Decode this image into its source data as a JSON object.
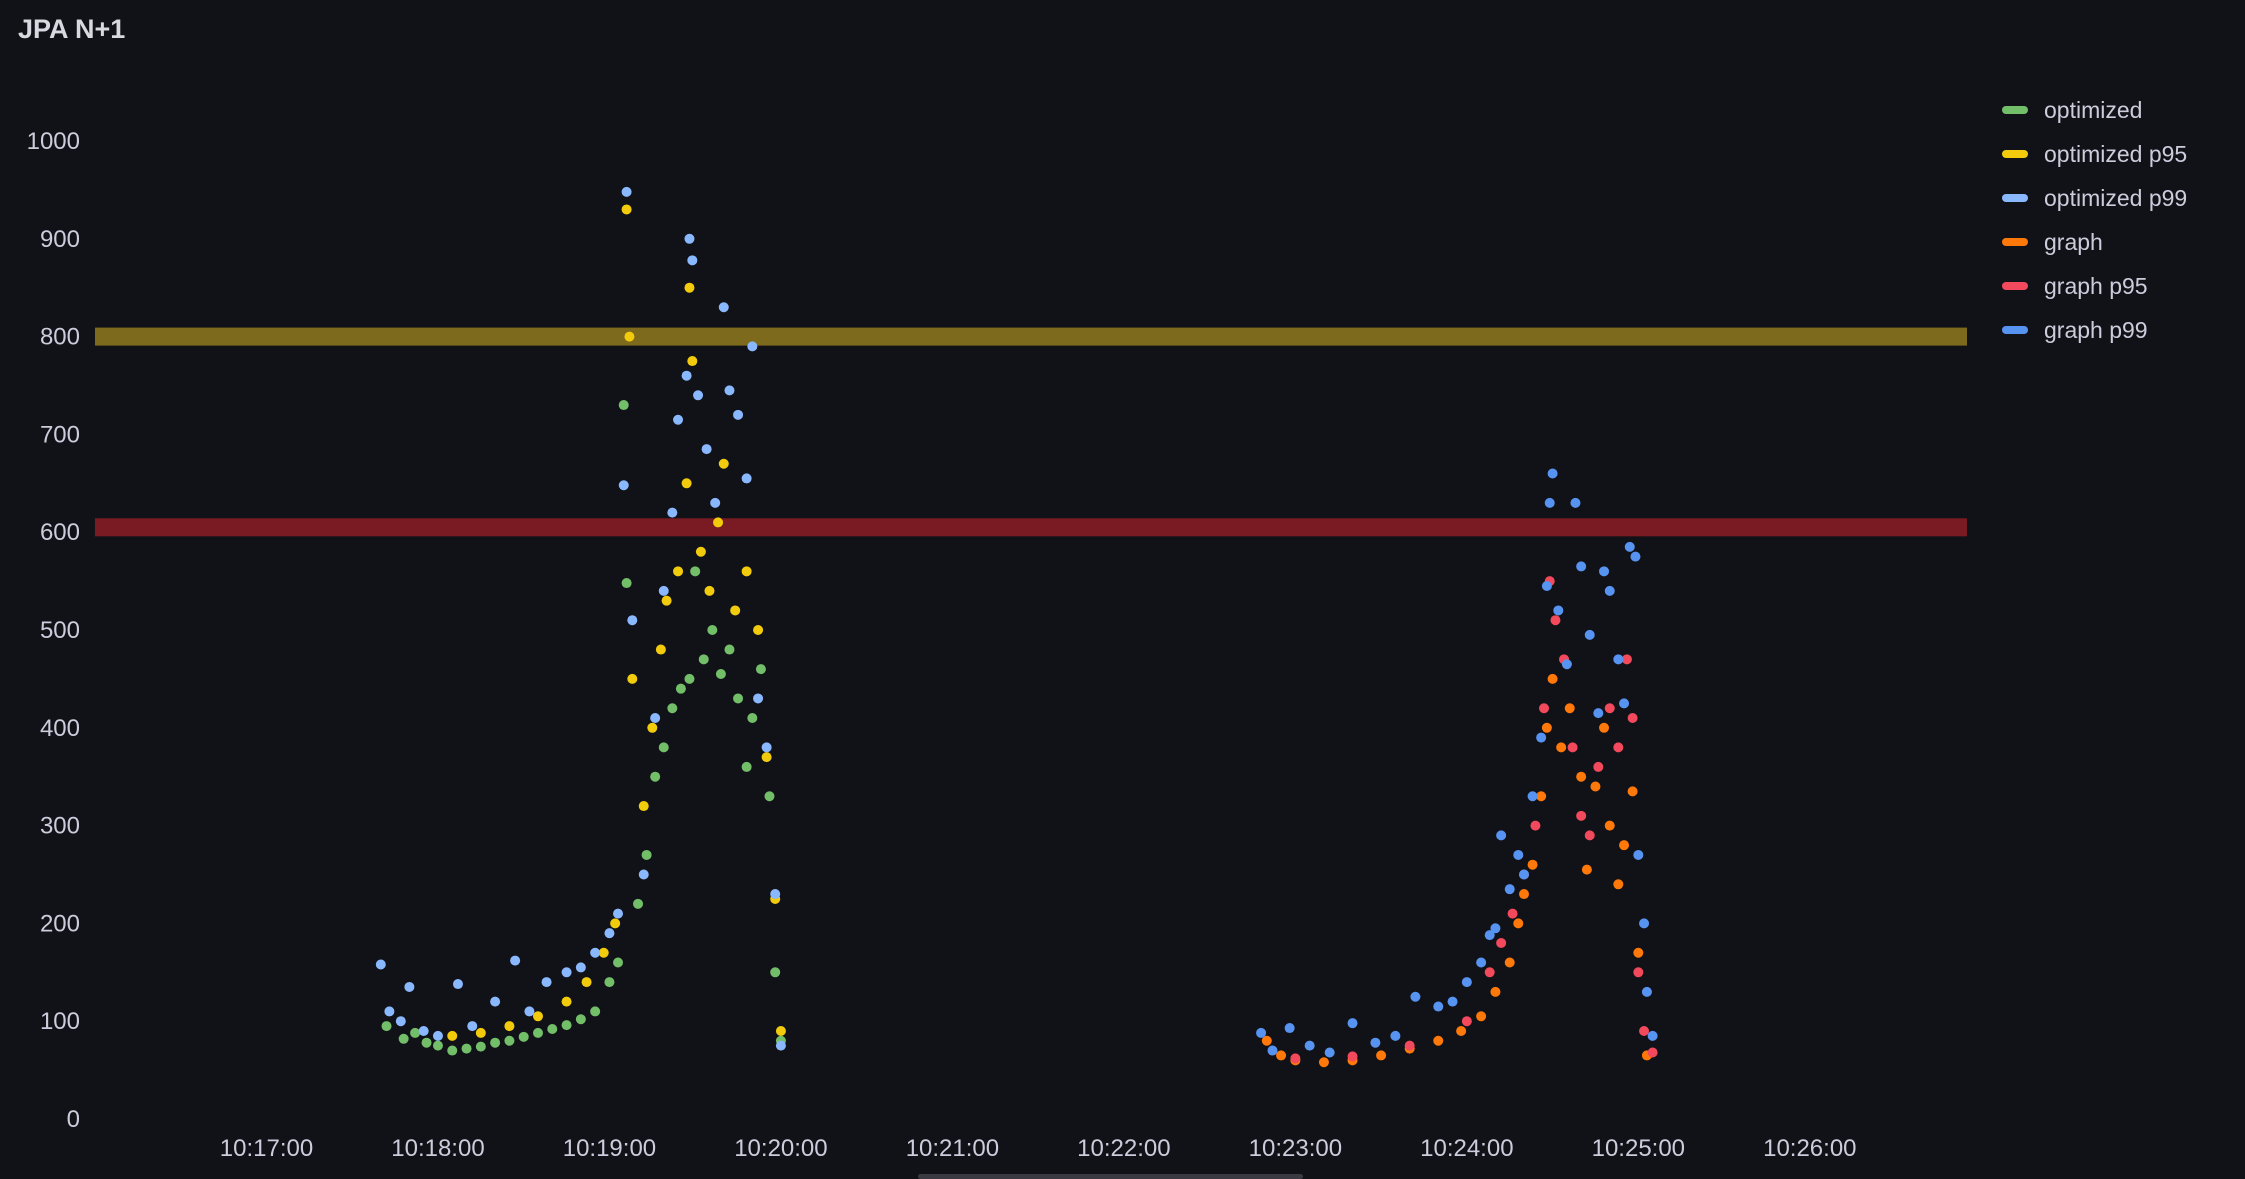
{
  "panel": {
    "title": "JPA N+1"
  },
  "chart_data": {
    "type": "scatter",
    "title": "JPA N+1",
    "xlabel": "",
    "ylabel": "",
    "ylim": [
      0,
      1000
    ],
    "yticks": [
      0,
      100,
      200,
      300,
      400,
      500,
      600,
      700,
      800,
      900,
      1000
    ],
    "xlim": [
      "10:16:00",
      "10:26:55"
    ],
    "xticks": [
      "10:17:00",
      "10:18:00",
      "10:19:00",
      "10:20:00",
      "10:21:00",
      "10:22:00",
      "10:23:00",
      "10:24:00",
      "10:25:00",
      "10:26:00"
    ],
    "legend_position": "right",
    "grid": false,
    "thresholds": [
      {
        "value": 800,
        "color": "#7d6a1c"
      },
      {
        "value": 605,
        "color": "#7a1a22"
      }
    ],
    "series": [
      {
        "name": "optimized",
        "color": "#73bf69",
        "points": [
          [
            "10:17:42",
            95
          ],
          [
            "10:17:48",
            82
          ],
          [
            "10:17:52",
            88
          ],
          [
            "10:17:56",
            78
          ],
          [
            "10:18:00",
            75
          ],
          [
            "10:18:05",
            70
          ],
          [
            "10:18:10",
            72
          ],
          [
            "10:18:15",
            74
          ],
          [
            "10:18:20",
            78
          ],
          [
            "10:18:25",
            80
          ],
          [
            "10:18:30",
            84
          ],
          [
            "10:18:35",
            88
          ],
          [
            "10:18:40",
            92
          ],
          [
            "10:18:45",
            96
          ],
          [
            "10:18:50",
            102
          ],
          [
            "10:18:55",
            110
          ],
          [
            "10:19:00",
            140
          ],
          [
            "10:19:03",
            160
          ],
          [
            "10:19:05",
            730
          ],
          [
            "10:19:06",
            548
          ],
          [
            "10:19:10",
            220
          ],
          [
            "10:19:13",
            270
          ],
          [
            "10:19:16",
            350
          ],
          [
            "10:19:19",
            380
          ],
          [
            "10:19:22",
            420
          ],
          [
            "10:19:25",
            440
          ],
          [
            "10:19:28",
            450
          ],
          [
            "10:19:30",
            560
          ],
          [
            "10:19:33",
            470
          ],
          [
            "10:19:36",
            500
          ],
          [
            "10:19:39",
            455
          ],
          [
            "10:19:42",
            480
          ],
          [
            "10:19:45",
            430
          ],
          [
            "10:19:48",
            360
          ],
          [
            "10:19:50",
            410
          ],
          [
            "10:19:53",
            460
          ],
          [
            "10:19:56",
            330
          ],
          [
            "10:19:58",
            150
          ],
          [
            "10:20:00",
            80
          ]
        ]
      },
      {
        "name": "optimized p95",
        "color": "#f2cc0c",
        "points": [
          [
            "10:18:05",
            85
          ],
          [
            "10:18:15",
            88
          ],
          [
            "10:18:25",
            95
          ],
          [
            "10:18:35",
            105
          ],
          [
            "10:18:45",
            120
          ],
          [
            "10:18:52",
            140
          ],
          [
            "10:18:58",
            170
          ],
          [
            "10:19:02",
            200
          ],
          [
            "10:19:06",
            930
          ],
          [
            "10:19:07",
            800
          ],
          [
            "10:19:08",
            450
          ],
          [
            "10:19:12",
            320
          ],
          [
            "10:19:15",
            400
          ],
          [
            "10:19:18",
            480
          ],
          [
            "10:19:20",
            530
          ],
          [
            "10:19:24",
            560
          ],
          [
            "10:19:27",
            650
          ],
          [
            "10:19:28",
            850
          ],
          [
            "10:19:29",
            775
          ],
          [
            "10:19:32",
            580
          ],
          [
            "10:19:35",
            540
          ],
          [
            "10:19:38",
            610
          ],
          [
            "10:19:40",
            670
          ],
          [
            "10:19:44",
            520
          ],
          [
            "10:19:48",
            560
          ],
          [
            "10:19:52",
            500
          ],
          [
            "10:19:55",
            370
          ],
          [
            "10:19:58",
            225
          ],
          [
            "10:20:00",
            90
          ]
        ]
      },
      {
        "name": "optimized p99",
        "color": "#8ab8ff",
        "points": [
          [
            "10:17:40",
            158
          ],
          [
            "10:17:43",
            110
          ],
          [
            "10:17:47",
            100
          ],
          [
            "10:17:50",
            135
          ],
          [
            "10:17:55",
            90
          ],
          [
            "10:18:00",
            85
          ],
          [
            "10:18:07",
            138
          ],
          [
            "10:18:12",
            95
          ],
          [
            "10:18:20",
            120
          ],
          [
            "10:18:27",
            162
          ],
          [
            "10:18:32",
            110
          ],
          [
            "10:18:38",
            140
          ],
          [
            "10:18:45",
            150
          ],
          [
            "10:18:50",
            155
          ],
          [
            "10:18:55",
            170
          ],
          [
            "10:19:00",
            190
          ],
          [
            "10:19:03",
            210
          ],
          [
            "10:19:05",
            648
          ],
          [
            "10:19:06",
            948
          ],
          [
            "10:19:08",
            510
          ],
          [
            "10:19:12",
            250
          ],
          [
            "10:19:16",
            410
          ],
          [
            "10:19:19",
            540
          ],
          [
            "10:19:22",
            620
          ],
          [
            "10:19:24",
            715
          ],
          [
            "10:19:27",
            760
          ],
          [
            "10:19:28",
            900
          ],
          [
            "10:19:29",
            878
          ],
          [
            "10:19:31",
            740
          ],
          [
            "10:19:34",
            685
          ],
          [
            "10:19:37",
            630
          ],
          [
            "10:19:40",
            830
          ],
          [
            "10:19:42",
            745
          ],
          [
            "10:19:45",
            720
          ],
          [
            "10:19:48",
            655
          ],
          [
            "10:19:50",
            790
          ],
          [
            "10:19:52",
            430
          ],
          [
            "10:19:55",
            380
          ],
          [
            "10:19:58",
            230
          ],
          [
            "10:20:00",
            75
          ]
        ]
      },
      {
        "name": "graph",
        "color": "#ff780a",
        "points": [
          [
            "10:22:50",
            80
          ],
          [
            "10:22:55",
            65
          ],
          [
            "10:23:00",
            60
          ],
          [
            "10:23:10",
            58
          ],
          [
            "10:23:20",
            60
          ],
          [
            "10:23:30",
            65
          ],
          [
            "10:23:40",
            72
          ],
          [
            "10:23:50",
            80
          ],
          [
            "10:23:58",
            90
          ],
          [
            "10:24:05",
            105
          ],
          [
            "10:24:10",
            130
          ],
          [
            "10:24:15",
            160
          ],
          [
            "10:24:18",
            200
          ],
          [
            "10:24:20",
            230
          ],
          [
            "10:24:23",
            260
          ],
          [
            "10:24:26",
            330
          ],
          [
            "10:24:28",
            400
          ],
          [
            "10:24:30",
            450
          ],
          [
            "10:24:33",
            380
          ],
          [
            "10:24:36",
            420
          ],
          [
            "10:24:40",
            350
          ],
          [
            "10:24:42",
            255
          ],
          [
            "10:24:45",
            340
          ],
          [
            "10:24:48",
            400
          ],
          [
            "10:24:50",
            300
          ],
          [
            "10:24:53",
            240
          ],
          [
            "10:24:55",
            280
          ],
          [
            "10:24:58",
            335
          ],
          [
            "10:25:00",
            170
          ],
          [
            "10:25:03",
            65
          ]
        ]
      },
      {
        "name": "graph p95",
        "color": "#f2495c",
        "points": [
          [
            "10:23:00",
            62
          ],
          [
            "10:23:20",
            64
          ],
          [
            "10:23:40",
            75
          ],
          [
            "10:24:00",
            100
          ],
          [
            "10:24:08",
            150
          ],
          [
            "10:24:12",
            180
          ],
          [
            "10:24:16",
            210
          ],
          [
            "10:24:20",
            250
          ],
          [
            "10:24:24",
            300
          ],
          [
            "10:24:27",
            420
          ],
          [
            "10:24:29",
            550
          ],
          [
            "10:24:31",
            510
          ],
          [
            "10:24:34",
            470
          ],
          [
            "10:24:37",
            380
          ],
          [
            "10:24:40",
            310
          ],
          [
            "10:24:43",
            290
          ],
          [
            "10:24:46",
            360
          ],
          [
            "10:24:50",
            420
          ],
          [
            "10:24:53",
            380
          ],
          [
            "10:24:56",
            470
          ],
          [
            "10:24:58",
            410
          ],
          [
            "10:25:00",
            150
          ],
          [
            "10:25:02",
            90
          ],
          [
            "10:25:05",
            68
          ]
        ]
      },
      {
        "name": "graph p99",
        "color": "#5794f2",
        "points": [
          [
            "10:22:48",
            88
          ],
          [
            "10:22:52",
            70
          ],
          [
            "10:22:58",
            93
          ],
          [
            "10:23:05",
            75
          ],
          [
            "10:23:12",
            68
          ],
          [
            "10:23:20",
            98
          ],
          [
            "10:23:28",
            78
          ],
          [
            "10:23:35",
            85
          ],
          [
            "10:23:42",
            125
          ],
          [
            "10:23:50",
            115
          ],
          [
            "10:23:55",
            120
          ],
          [
            "10:24:00",
            140
          ],
          [
            "10:24:05",
            160
          ],
          [
            "10:24:08",
            188
          ],
          [
            "10:24:10",
            195
          ],
          [
            "10:24:12",
            290
          ],
          [
            "10:24:15",
            235
          ],
          [
            "10:24:18",
            270
          ],
          [
            "10:24:20",
            250
          ],
          [
            "10:24:23",
            330
          ],
          [
            "10:24:26",
            390
          ],
          [
            "10:24:28",
            545
          ],
          [
            "10:24:29",
            630
          ],
          [
            "10:24:30",
            660
          ],
          [
            "10:24:32",
            520
          ],
          [
            "10:24:35",
            465
          ],
          [
            "10:24:38",
            630
          ],
          [
            "10:24:40",
            565
          ],
          [
            "10:24:43",
            495
          ],
          [
            "10:24:46",
            415
          ],
          [
            "10:24:48",
            560
          ],
          [
            "10:24:50",
            540
          ],
          [
            "10:24:53",
            470
          ],
          [
            "10:24:55",
            425
          ],
          [
            "10:24:57",
            585
          ],
          [
            "10:24:59",
            575
          ],
          [
            "10:25:00",
            270
          ],
          [
            "10:25:02",
            200
          ],
          [
            "10:25:03",
            130
          ],
          [
            "10:25:05",
            85
          ]
        ]
      }
    ]
  }
}
